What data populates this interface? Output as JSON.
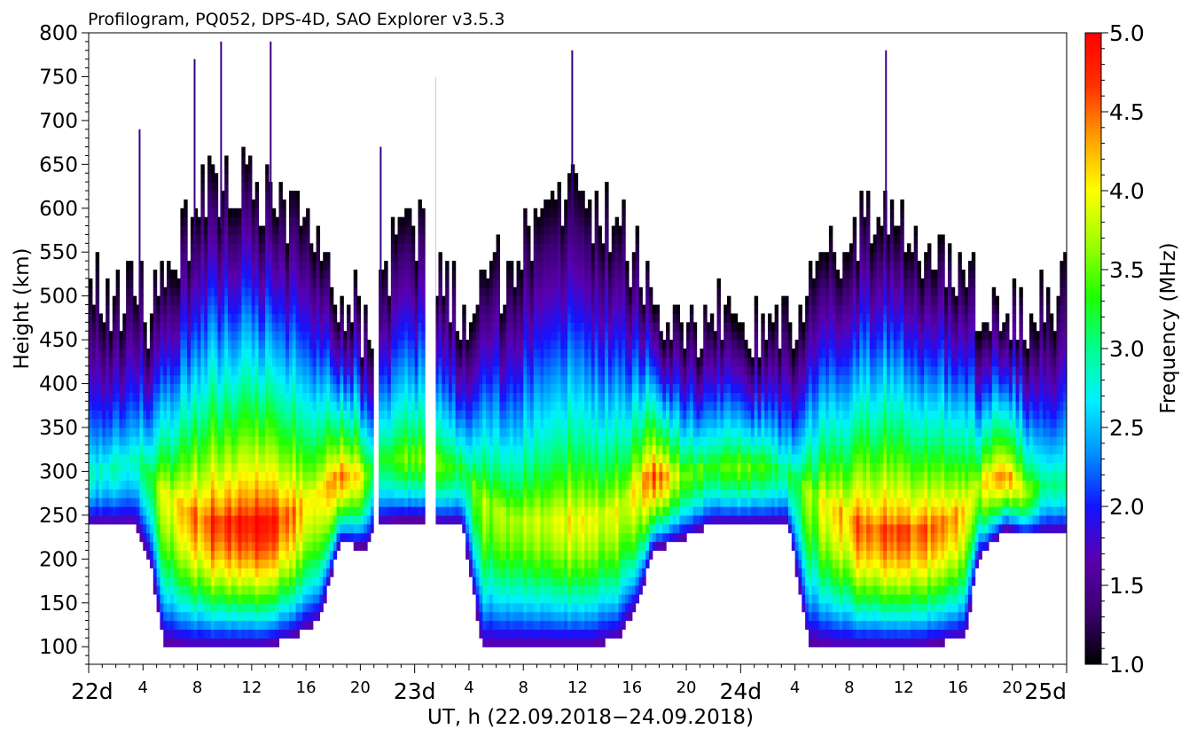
{
  "chart_data": {
    "type": "heatmap",
    "title": "Profilogram, PQ052, DPS-4D, SAO Explorer v3.5.3",
    "xlabel": "UT, h (22.09.2018−24.09.2018)",
    "ylabel": "Height (km)",
    "colorbar_label": "Frequency (MHz)",
    "x_unit": "hours since 22d 00 UT",
    "xlim": [
      0,
      72
    ],
    "ylim": [
      80,
      800
    ],
    "y_ticks": [
      "100",
      "150",
      "200",
      "250",
      "300",
      "350",
      "400",
      "450",
      "500",
      "550",
      "600",
      "650",
      "700",
      "750",
      "800"
    ],
    "x_day_labels": [
      {
        "x": 0,
        "label": "22d"
      },
      {
        "x": 24,
        "label": "23d"
      },
      {
        "x": 48,
        "label": "24d"
      },
      {
        "x": 72,
        "label": "25d"
      }
    ],
    "x_hour_labels": [
      {
        "x": 4,
        "label": "4"
      },
      {
        "x": 8,
        "label": "8"
      },
      {
        "x": 12,
        "label": "12"
      },
      {
        "x": 16,
        "label": "16"
      },
      {
        "x": 20,
        "label": "20"
      },
      {
        "x": 28,
        "label": "4"
      },
      {
        "x": 32,
        "label": "8"
      },
      {
        "x": 36,
        "label": "12"
      },
      {
        "x": 40,
        "label": "16"
      },
      {
        "x": 44,
        "label": "20"
      },
      {
        "x": 52,
        "label": "4"
      },
      {
        "x": 56,
        "label": "8"
      },
      {
        "x": 60,
        "label": "12"
      },
      {
        "x": 64,
        "label": "16"
      },
      {
        "x": 68,
        "label": "20"
      }
    ],
    "colorbar_range": [
      1.0,
      5.0
    ],
    "colorbar_ticks": [
      "1.0",
      "1.5",
      "2.0",
      "2.5",
      "3.0",
      "3.5",
      "4.0",
      "4.5",
      "5.0"
    ],
    "colormap": [
      "#000000",
      "#3b0070",
      "#5a00b0",
      "#1414ff",
      "#0090ff",
      "#00f0ff",
      "#00ff90",
      "#20ff00",
      "#a0ff00",
      "#ffff00",
      "#ffa000",
      "#ff3000",
      "#ff0000"
    ],
    "profile_keypoints": [
      {
        "x": 0.0,
        "bottom": 240,
        "peak_h": 300,
        "fof2": 2.8,
        "top": 490
      },
      {
        "x": 2.0,
        "bottom": 240,
        "peak_h": 310,
        "fof2": 2.9,
        "top": 480
      },
      {
        "x": 3.5,
        "bottom": 240,
        "peak_h": 320,
        "fof2": 2.9,
        "top": 500
      },
      {
        "x": 4.5,
        "bottom": 200,
        "peak_h": 300,
        "fof2": 3.3,
        "top": 460
      },
      {
        "x": 5.5,
        "bottom": 105,
        "peak_h": 280,
        "fof2": 3.8,
        "top": 500
      },
      {
        "x": 7.0,
        "bottom": 100,
        "peak_h": 260,
        "fof2": 4.2,
        "top": 560
      },
      {
        "x": 9.0,
        "bottom": 100,
        "peak_h": 245,
        "fof2": 4.7,
        "top": 600
      },
      {
        "x": 11.0,
        "bottom": 100,
        "peak_h": 245,
        "fof2": 4.9,
        "top": 620
      },
      {
        "x": 13.0,
        "bottom": 100,
        "peak_h": 245,
        "fof2": 4.8,
        "top": 600
      },
      {
        "x": 15.0,
        "bottom": 110,
        "peak_h": 255,
        "fof2": 4.4,
        "top": 570
      },
      {
        "x": 17.0,
        "bottom": 130,
        "peak_h": 280,
        "fof2": 4.0,
        "top": 520
      },
      {
        "x": 18.5,
        "bottom": 220,
        "peak_h": 300,
        "fof2": 4.5,
        "top": 480
      },
      {
        "x": 19.5,
        "bottom": 215,
        "peak_h": 300,
        "fof2": 4.2,
        "top": 470
      },
      {
        "x": 20.5,
        "bottom": 215,
        "peak_h": 300,
        "fof2": 3.5,
        "top": 450
      },
      {
        "x": 21.2,
        "bottom": 240,
        "peak_h": 320,
        "fof2": 3.1,
        "top": 450
      },
      {
        "x": 21.7,
        "bottom": 240,
        "peak_h": 320,
        "fof2": 3.3,
        "top": 520
      },
      {
        "x": 23.0,
        "bottom": 245,
        "peak_h": 320,
        "fof2": 3.5,
        "top": 550
      },
      {
        "x": 25.0,
        "bottom": 245,
        "peak_h": 320,
        "fof2": 3.5,
        "top": 550
      },
      {
        "x": 26.0,
        "bottom": 240,
        "peak_h": 310,
        "fof2": 3.4,
        "top": 500
      },
      {
        "x": 27.5,
        "bottom": 240,
        "peak_h": 310,
        "fof2": 3.2,
        "top": 460
      },
      {
        "x": 29.0,
        "bottom": 100,
        "peak_h": 270,
        "fof2": 3.7,
        "top": 480
      },
      {
        "x": 31.0,
        "bottom": 100,
        "peak_h": 250,
        "fof2": 3.6,
        "top": 520
      },
      {
        "x": 33.0,
        "bottom": 100,
        "peak_h": 250,
        "fof2": 3.8,
        "top": 560
      },
      {
        "x": 35.0,
        "bottom": 100,
        "peak_h": 250,
        "fof2": 4.0,
        "top": 600
      },
      {
        "x": 37.0,
        "bottom": 100,
        "peak_h": 250,
        "fof2": 4.0,
        "top": 580
      },
      {
        "x": 39.0,
        "bottom": 110,
        "peak_h": 260,
        "fof2": 3.9,
        "top": 560
      },
      {
        "x": 40.5,
        "bottom": 150,
        "peak_h": 290,
        "fof2": 4.0,
        "top": 520
      },
      {
        "x": 41.5,
        "bottom": 210,
        "peak_h": 300,
        "fof2": 4.6,
        "top": 490
      },
      {
        "x": 42.5,
        "bottom": 215,
        "peak_h": 300,
        "fof2": 4.3,
        "top": 470
      },
      {
        "x": 44.0,
        "bottom": 225,
        "peak_h": 300,
        "fof2": 3.4,
        "top": 440
      },
      {
        "x": 46.0,
        "bottom": 240,
        "peak_h": 310,
        "fof2": 3.4,
        "top": 460
      },
      {
        "x": 48.0,
        "bottom": 240,
        "peak_h": 310,
        "fof2": 3.5,
        "top": 460
      },
      {
        "x": 50.0,
        "bottom": 240,
        "peak_h": 310,
        "fof2": 3.3,
        "top": 450
      },
      {
        "x": 51.5,
        "bottom": 240,
        "peak_h": 300,
        "fof2": 3.1,
        "top": 440
      },
      {
        "x": 53.0,
        "bottom": 105,
        "peak_h": 280,
        "fof2": 3.6,
        "top": 470
      },
      {
        "x": 55.0,
        "bottom": 100,
        "peak_h": 260,
        "fof2": 4.1,
        "top": 530
      },
      {
        "x": 57.0,
        "bottom": 100,
        "peak_h": 240,
        "fof2": 4.6,
        "top": 560
      },
      {
        "x": 59.0,
        "bottom": 100,
        "peak_h": 235,
        "fof2": 4.7,
        "top": 560
      },
      {
        "x": 61.0,
        "bottom": 100,
        "peak_h": 235,
        "fof2": 4.6,
        "top": 540
      },
      {
        "x": 63.0,
        "bottom": 105,
        "peak_h": 245,
        "fof2": 4.3,
        "top": 520
      },
      {
        "x": 64.5,
        "bottom": 110,
        "peak_h": 260,
        "fof2": 4.2,
        "top": 500
      },
      {
        "x": 65.5,
        "bottom": 200,
        "peak_h": 290,
        "fof2": 3.8,
        "top": 480
      },
      {
        "x": 67.5,
        "bottom": 235,
        "peak_h": 300,
        "fof2": 4.5,
        "top": 470
      },
      {
        "x": 69.0,
        "bottom": 225,
        "peak_h": 280,
        "fof2": 3.8,
        "top": 450
      },
      {
        "x": 70.5,
        "bottom": 230,
        "peak_h": 290,
        "fof2": 3.0,
        "top": 470
      },
      {
        "x": 72.0,
        "bottom": 230,
        "peak_h": 290,
        "fof2": 3.0,
        "top": 500
      }
    ],
    "data_gaps": [
      [
        21.0,
        21.35
      ],
      [
        24.8,
        25.55
      ]
    ],
    "vertical_spikes": [
      {
        "x": 3.75,
        "top": 690
      },
      {
        "x": 7.8,
        "top": 770
      },
      {
        "x": 9.75,
        "top": 790
      },
      {
        "x": 13.4,
        "top": 790
      },
      {
        "x": 21.5,
        "top": 670
      },
      {
        "x": 25.5,
        "top": 750
      },
      {
        "x": 35.6,
        "top": 780
      },
      {
        "x": 58.7,
        "top": 780
      }
    ]
  }
}
